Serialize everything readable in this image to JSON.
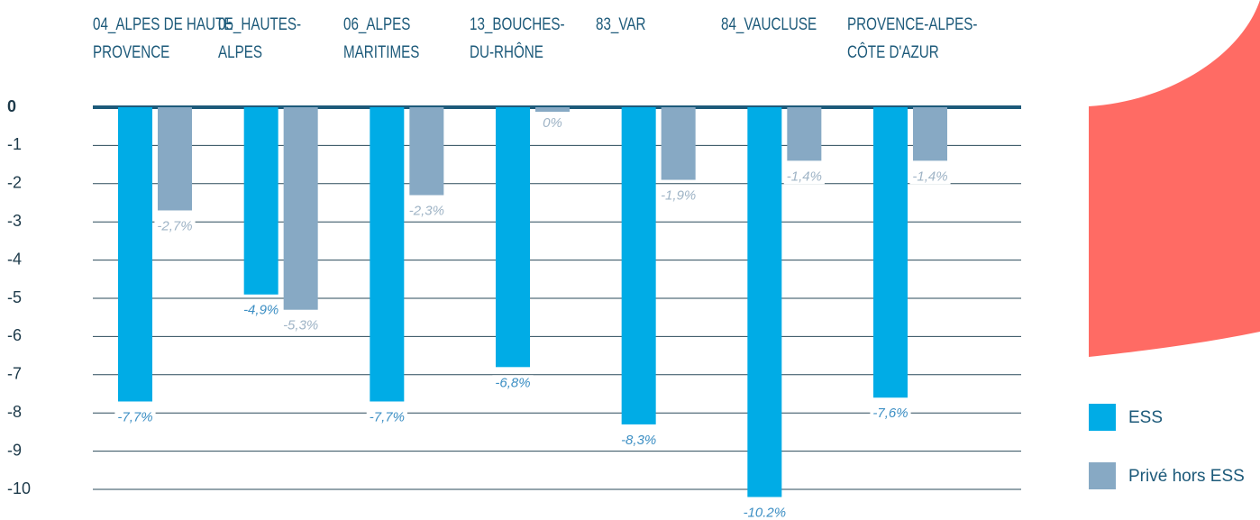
{
  "chart_data": {
    "type": "bar",
    "categories": [
      "04_ALPES DE HAUTE\nPROVENCE",
      "05_HAUTES-\nALPES",
      "06_ALPES\nMARITIMES",
      "13_BOUCHES-\nDU-RHÔNE",
      "83_VAR",
      "84_VAUCLUSE",
      "PROVENCE-ALPES-\nCÔTE D'AZUR"
    ],
    "series": [
      {
        "name": "ESS",
        "color": "#00ace6",
        "values": [
          -7.7,
          -4.9,
          -7.7,
          -6.8,
          -8.3,
          -10.2,
          -7.6
        ],
        "value_labels": [
          "-7,7%",
          "-4,9%",
          "-7,7%",
          "-6,8%",
          "-8,3%",
          "-10.2%",
          "-7,6%"
        ]
      },
      {
        "name": "Privé hors ESS",
        "color": "#87a9c4",
        "values": [
          -2.7,
          -5.3,
          -2.3,
          0,
          -1.9,
          -1.4,
          -1.4
        ],
        "value_labels": [
          "-2,7%",
          "-5,3%",
          "-2,3%",
          "0%",
          "-1,9%",
          "-1,4%",
          "-1,4%"
        ]
      }
    ],
    "ylim": [
      -10,
      0
    ],
    "yticks": [
      0,
      -1,
      -2,
      -3,
      -4,
      -5,
      -6,
      -7,
      -8,
      -9,
      -10
    ],
    "grid": true
  }
}
